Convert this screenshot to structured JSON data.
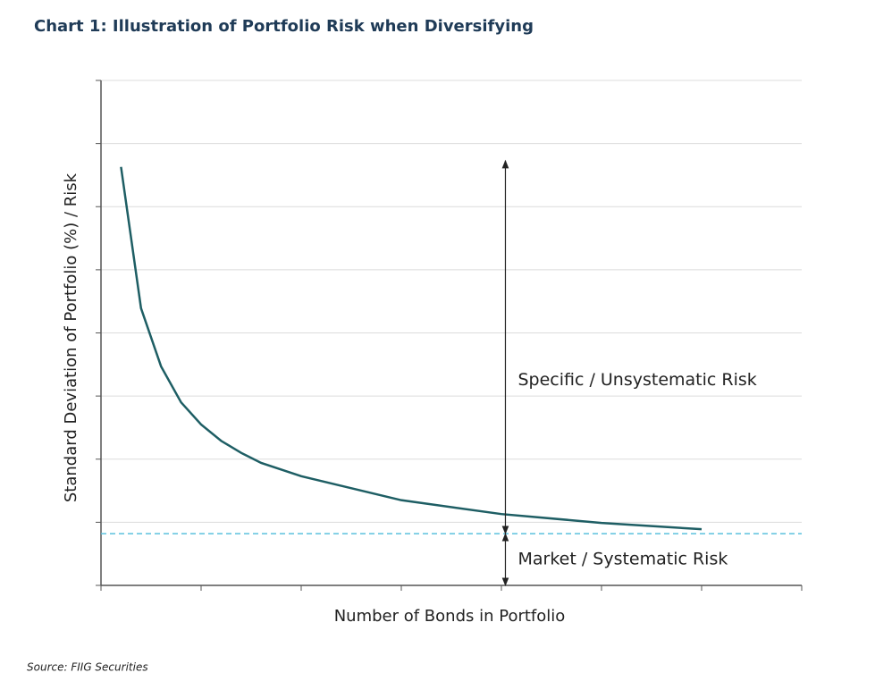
{
  "chart_data": {
    "type": "line",
    "title": "Chart 1: Illustration of Portfolio Risk when Diversifying",
    "x_label": "Number of Bonds in Portfolio",
    "y_label": "Standard Deviation of Portfolio (%) / Risk",
    "source": "Source: FIIG Securities",
    "x": [
      0.2,
      0.4,
      0.6,
      0.8,
      1.0,
      1.2,
      1.4,
      1.6,
      2.0,
      3.0,
      4.0,
      5.0,
      6.0
    ],
    "values": [
      6.63,
      4.39,
      3.47,
      2.9,
      2.55,
      2.29,
      2.1,
      1.94,
      1.73,
      1.35,
      1.13,
      0.99,
      0.89
    ],
    "color": "#1e5e64",
    "xlim": [
      0,
      7
    ],
    "xticks": [
      0,
      1,
      2,
      3,
      4,
      5,
      6,
      7
    ],
    "ylim": [
      0,
      8
    ],
    "yticks": [
      0,
      1,
      2,
      3,
      4,
      5,
      6,
      7,
      8
    ],
    "grid": true,
    "reference_line": {
      "value": 0.82,
      "color": "#5bc0de"
    },
    "annotations": [
      {
        "text": "Specific / Unsystematic Risk",
        "x": 4.04,
        "from": 6.73,
        "to": 0.82
      },
      {
        "text": "Market / Systematic Risk",
        "x": 4.04,
        "from": 0.82,
        "to": 0
      }
    ]
  }
}
